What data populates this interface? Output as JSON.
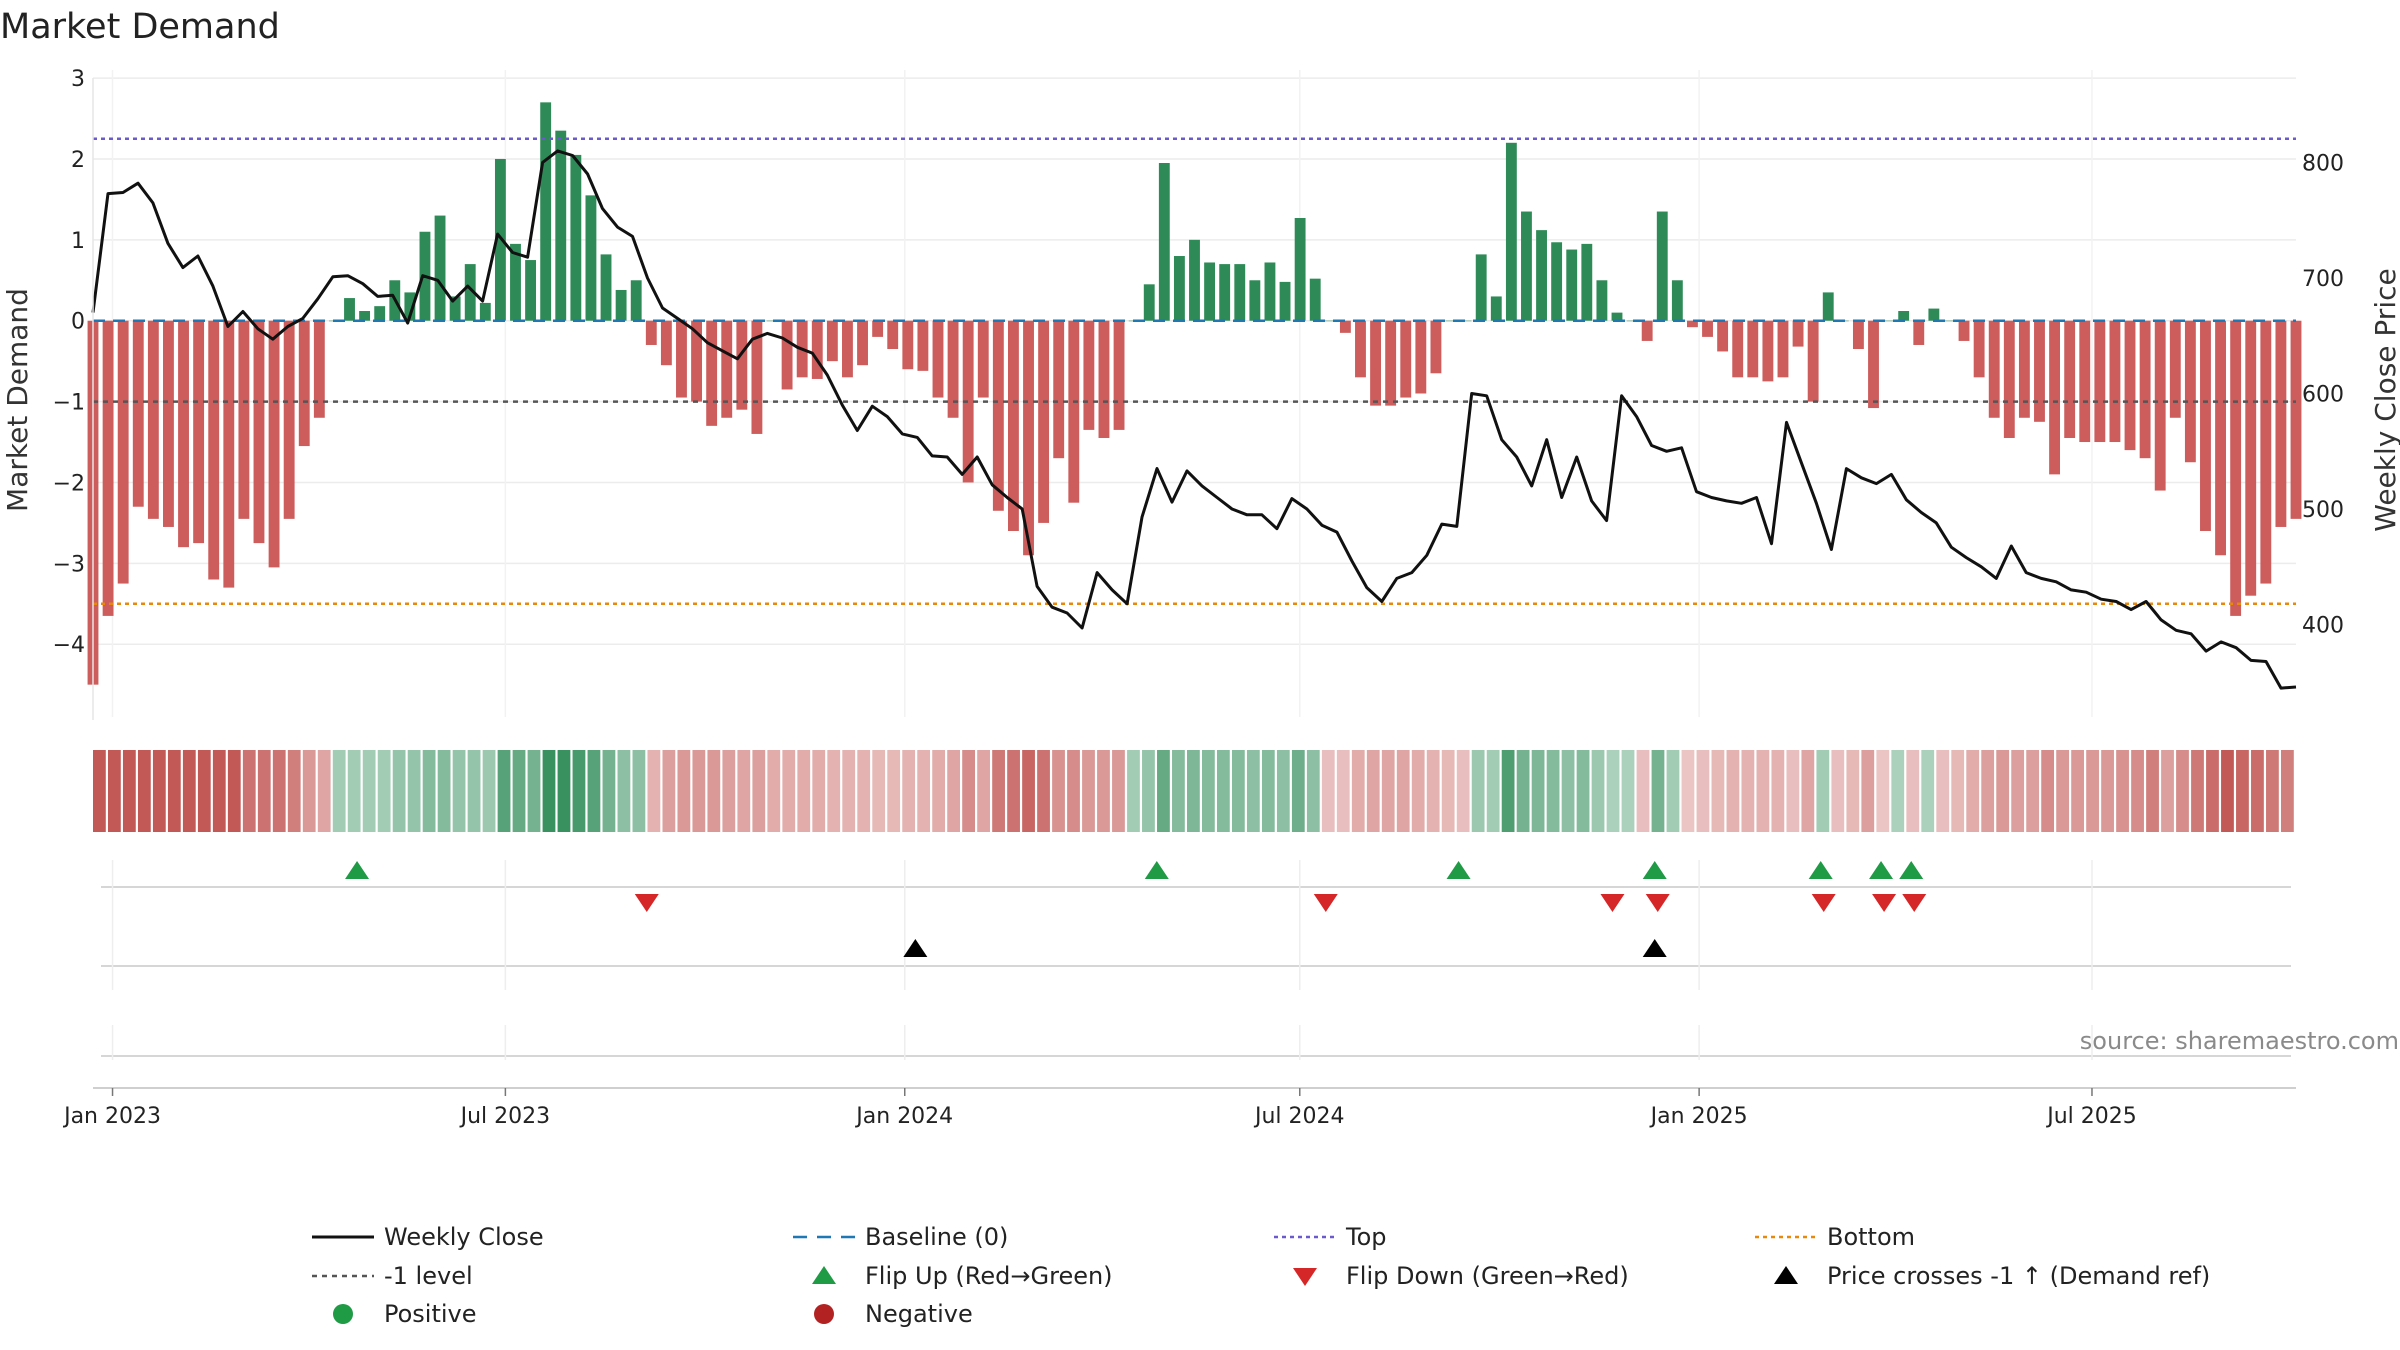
{
  "chart_data": {
    "type": "bar+line",
    "title": "Market Demand",
    "ylabel_left": "Market Demand",
    "ylabel_right": "Weekly Close Price",
    "ylim_left": [
      -4.9,
      3.1
    ],
    "ylim_right": [
      320,
      880
    ],
    "yticks_left": [
      3,
      2,
      1,
      0,
      -1,
      -2,
      -3,
      -4
    ],
    "yticks_left_labels": [
      "3",
      "2",
      "1",
      "0",
      "−1",
      "−2",
      "−3",
      "−4"
    ],
    "yticks_right": [
      800,
      700,
      600,
      500,
      400
    ],
    "yticks_right_labels": [
      "800",
      "700",
      "600",
      "500",
      "400"
    ],
    "x_start": "2022-12-23",
    "x_end": "2025-10-03",
    "xticks": [
      {
        "date": "2023-01-01",
        "label": "Jan 2023"
      },
      {
        "date": "2023-07-01",
        "label": "Jul 2023"
      },
      {
        "date": "2024-01-01",
        "label": "Jan 2024"
      },
      {
        "date": "2024-07-01",
        "label": "Jul 2024"
      },
      {
        "date": "2025-01-01",
        "label": "Jan 2025"
      },
      {
        "date": "2025-07-01",
        "label": "Jul 2025"
      }
    ],
    "reference_lines": {
      "top": 2.25,
      "bottom": -3.5,
      "minus_one": -1,
      "baseline": 0
    },
    "demand": [
      -4.5,
      -3.65,
      -3.25,
      -2.3,
      -2.45,
      -2.55,
      -2.8,
      -2.75,
      -3.2,
      -3.3,
      -2.45,
      -2.75,
      -3.05,
      -2.45,
      -1.55,
      -1.2,
      0,
      0.28,
      0.12,
      0.18,
      0.5,
      0.35,
      1.1,
      1.3,
      0.3,
      0.7,
      0.22,
      2.0,
      0.95,
      0.75,
      2.7,
      2.35,
      2.05,
      1.55,
      0.82,
      0.38,
      0.5,
      -0.3,
      -0.55,
      -0.95,
      -1.0,
      -1.3,
      -1.2,
      -1.1,
      -1.4,
      0,
      -0.85,
      -0.7,
      -0.72,
      -0.5,
      -0.7,
      -0.55,
      -0.2,
      -0.35,
      -0.6,
      -0.62,
      -0.95,
      -1.2,
      -2.0,
      -0.95,
      -2.35,
      -2.6,
      -2.9,
      -2.5,
      -1.7,
      -2.25,
      -1.35,
      -1.45,
      -1.35,
      0,
      0.45,
      1.95,
      0.8,
      1.0,
      0.72,
      0.7,
      0.7,
      0.5,
      0.72,
      0.48,
      1.27,
      0.52,
      0,
      -0.15,
      -0.7,
      -1.05,
      -1.05,
      -0.95,
      -0.9,
      -0.65,
      0,
      0,
      0.82,
      0.3,
      2.2,
      1.35,
      1.12,
      0.97,
      0.88,
      0.95,
      0.5,
      0.1,
      0,
      -0.25,
      1.35,
      0.5,
      -0.08,
      -0.2,
      -0.38,
      -0.7,
      -0.7,
      -0.75,
      -0.7,
      -0.32,
      -1.0,
      0.35,
      0,
      -0.35,
      -1.08,
      0,
      0.12,
      -0.3,
      0.15,
      0,
      -0.25,
      -0.7,
      -1.2,
      -1.45,
      -1.2,
      -1.25,
      -1.9,
      -1.45,
      -1.5,
      -1.5,
      -1.5,
      -1.6,
      -1.7,
      -2.1,
      -1.2,
      -1.75,
      -2.6,
      -2.9,
      -3.65,
      -3.4,
      -3.25,
      -2.55,
      -2.45
    ],
    "price": [
      670,
      773,
      774,
      782,
      765,
      730,
      709,
      719,
      693,
      658,
      671,
      656,
      647,
      658,
      665,
      682,
      701,
      702,
      695,
      684,
      685,
      661,
      702,
      698,
      680,
      693,
      680,
      738,
      722,
      718,
      800,
      810,
      806,
      790,
      760,
      744,
      736,
      700,
      674,
      665,
      656,
      644,
      637,
      630,
      647,
      652,
      648,
      640,
      635,
      616,
      590,
      568,
      589,
      580,
      565,
      562,
      546,
      545,
      530,
      545,
      521,
      510,
      500,
      433,
      415,
      410,
      397,
      445,
      430,
      418,
      493,
      535,
      506,
      533,
      520,
      510,
      500,
      495,
      495,
      483,
      509,
      500,
      486,
      480,
      455,
      432,
      420,
      440,
      445,
      460,
      487,
      485,
      600,
      598,
      560,
      545,
      520,
      560,
      510,
      545,
      507,
      490,
      598,
      580,
      555,
      550,
      553,
      515,
      510,
      507,
      505,
      510,
      470,
      575,
      540,
      505,
      465,
      535,
      527,
      522,
      530,
      508,
      497,
      488,
      467,
      458,
      450,
      440,
      468,
      445,
      440,
      437,
      430,
      428,
      422,
      420,
      413,
      420,
      404,
      395,
      392,
      377,
      385,
      380,
      369,
      368,
      345,
      346
    ],
    "demand_shade": [
      -1.0,
      -1.0,
      -1.0,
      -1.0,
      -1.0,
      -1.0,
      -1.0,
      -1.0,
      -1.0,
      -1.0,
      -0.8,
      -0.8,
      -0.8,
      -0.7,
      -0.5,
      -0.4,
      0.3,
      0.3,
      0.3,
      0.3,
      0.4,
      0.4,
      0.5,
      0.5,
      0.4,
      0.4,
      0.35,
      0.8,
      0.7,
      0.6,
      1.0,
      1.0,
      0.9,
      0.8,
      0.6,
      0.45,
      0.45,
      -0.3,
      -0.45,
      -0.5,
      -0.5,
      -0.5,
      -0.45,
      -0.4,
      -0.45,
      -0.35,
      -0.35,
      -0.35,
      -0.35,
      -0.3,
      -0.3,
      -0.3,
      -0.25,
      -0.25,
      -0.3,
      -0.3,
      -0.35,
      -0.4,
      -0.6,
      -0.4,
      -0.75,
      -0.8,
      -0.9,
      -0.8,
      -0.55,
      -0.6,
      -0.5,
      -0.5,
      -0.5,
      0.3,
      0.4,
      0.7,
      0.5,
      0.55,
      0.5,
      0.5,
      0.5,
      0.45,
      0.5,
      0.45,
      0.65,
      0.45,
      -0.2,
      -0.2,
      -0.35,
      -0.4,
      -0.4,
      -0.4,
      -0.35,
      -0.3,
      -0.25,
      -0.2,
      0.35,
      0.3,
      0.85,
      0.6,
      0.55,
      0.5,
      0.45,
      0.5,
      0.35,
      0.25,
      0.25,
      -0.2,
      0.6,
      0.3,
      -0.15,
      -0.2,
      -0.25,
      -0.3,
      -0.3,
      -0.3,
      -0.3,
      -0.2,
      -0.4,
      0.3,
      -0.2,
      -0.25,
      -0.45,
      -0.15,
      0.25,
      -0.2,
      0.25,
      -0.2,
      -0.25,
      -0.35,
      -0.45,
      -0.5,
      -0.45,
      -0.45,
      -0.6,
      -0.5,
      -0.5,
      -0.5,
      -0.5,
      -0.55,
      -0.6,
      -0.7,
      -0.45,
      -0.6,
      -0.75,
      -0.85,
      -1.0,
      -0.9,
      -0.85,
      -0.75,
      -0.7
    ],
    "flip_up_x": [
      17,
      70,
      90,
      103,
      114,
      118,
      120
    ],
    "flip_down_x": [
      37,
      82,
      101,
      104,
      115,
      119,
      121
    ],
    "price_cross_x": [
      54,
      103
    ],
    "colors": {
      "positive_bar": "#2e8b57",
      "negative_bar": "#cd5c5c",
      "price_line": "#111111",
      "baseline": "#1f77b4",
      "top_line": "#6a5acd",
      "bottom_line": "#e8890c",
      "minus_one_line": "#555555",
      "flip_up": "#1f9a45",
      "flip_down": "#d62728",
      "price_cross": "#000000",
      "positive_dot": "#1f9a45",
      "negative_dot": "#b22222",
      "heat_pos": "#2e8b57",
      "heat_neg": "#c0504d"
    },
    "legend": [
      {
        "key": "close",
        "label": "Weekly Close"
      },
      {
        "key": "baseline",
        "label": "Baseline (0)"
      },
      {
        "key": "top",
        "label": "Top"
      },
      {
        "key": "bottom",
        "label": "Bottom"
      },
      {
        "key": "minus1",
        "label": "-1 level"
      },
      {
        "key": "flipup",
        "label": "Flip Up (Red→Green)"
      },
      {
        "key": "flipdown",
        "label": "Flip Down (Green→Red)"
      },
      {
        "key": "cross",
        "label": "Price crosses -1 ↑ (Demand ref)"
      },
      {
        "key": "pos",
        "label": "Positive"
      },
      {
        "key": "neg",
        "label": "Negative"
      }
    ],
    "source": "source: sharemaestro.com"
  }
}
